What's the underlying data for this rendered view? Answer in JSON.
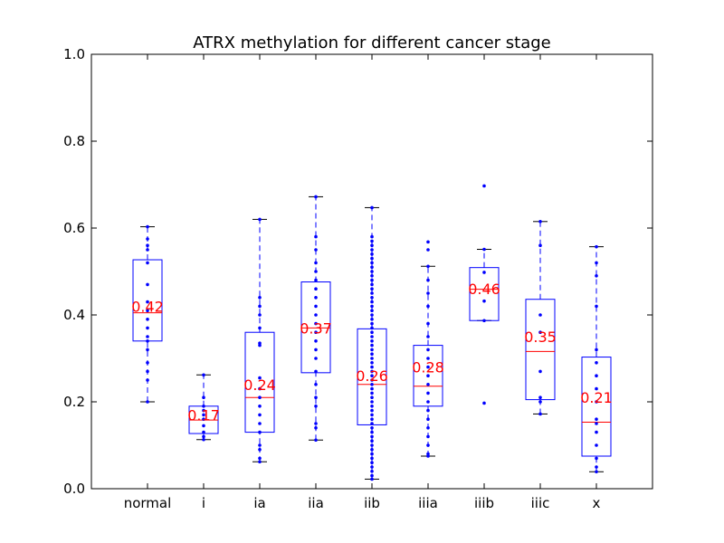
{
  "chart_data": {
    "type": "box",
    "title": "ATRX methylation for different cancer stage",
    "xlabel": "",
    "ylabel": "",
    "ylim": [
      0.0,
      1.0
    ],
    "yticks": [
      "0.0",
      "0.2",
      "0.4",
      "0.6",
      "0.8",
      "1.0"
    ],
    "categories": [
      "normal",
      "i",
      "ia",
      "iia",
      "iib",
      "iiia",
      "iiib",
      "iiic",
      "x"
    ],
    "colors": {
      "box": "#0000ff",
      "median": "#ff0000",
      "points": "#0000ff",
      "mean_label": "#ff0000"
    },
    "boxes": [
      {
        "category": "normal",
        "whisker_low": 0.2,
        "q1": 0.34,
        "median": 0.405,
        "q3": 0.527,
        "whisker_high": 0.603,
        "mean_label": "0.42",
        "points": [
          0.2,
          0.25,
          0.27,
          0.29,
          0.32,
          0.34,
          0.35,
          0.37,
          0.39,
          0.41,
          0.43,
          0.47,
          0.52,
          0.55,
          0.56,
          0.575,
          0.603
        ]
      },
      {
        "category": "i",
        "whisker_low": 0.113,
        "q1": 0.127,
        "median": 0.158,
        "q3": 0.19,
        "whisker_high": 0.262,
        "mean_label": "0.17",
        "points": [
          0.113,
          0.12,
          0.13,
          0.145,
          0.16,
          0.17,
          0.18,
          0.19,
          0.21,
          0.262
        ]
      },
      {
        "category": "ia",
        "whisker_low": 0.062,
        "q1": 0.13,
        "median": 0.21,
        "q3": 0.36,
        "whisker_high": 0.62,
        "mean_label": "0.24",
        "points": [
          0.062,
          0.07,
          0.09,
          0.1,
          0.13,
          0.15,
          0.17,
          0.19,
          0.21,
          0.23,
          0.255,
          0.33,
          0.335,
          0.37,
          0.4,
          0.42,
          0.44,
          0.62
        ]
      },
      {
        "category": "iia",
        "whisker_low": 0.112,
        "q1": 0.267,
        "median": 0.37,
        "q3": 0.476,
        "whisker_high": 0.672,
        "mean_label": "0.37",
        "points": [
          0.112,
          0.14,
          0.15,
          0.19,
          0.21,
          0.24,
          0.27,
          0.3,
          0.32,
          0.34,
          0.36,
          0.38,
          0.4,
          0.42,
          0.44,
          0.46,
          0.48,
          0.5,
          0.52,
          0.55,
          0.58,
          0.672
        ]
      },
      {
        "category": "iib",
        "whisker_low": 0.022,
        "q1": 0.147,
        "median": 0.24,
        "q3": 0.368,
        "whisker_high": 0.647,
        "mean_label": "0.26",
        "points": [
          0.022,
          0.03,
          0.04,
          0.05,
          0.06,
          0.07,
          0.08,
          0.09,
          0.1,
          0.11,
          0.12,
          0.13,
          0.14,
          0.15,
          0.16,
          0.17,
          0.18,
          0.19,
          0.2,
          0.21,
          0.22,
          0.23,
          0.24,
          0.25,
          0.26,
          0.27,
          0.28,
          0.29,
          0.3,
          0.31,
          0.32,
          0.33,
          0.34,
          0.35,
          0.36,
          0.37,
          0.38,
          0.39,
          0.4,
          0.41,
          0.42,
          0.43,
          0.44,
          0.45,
          0.46,
          0.47,
          0.48,
          0.49,
          0.5,
          0.51,
          0.52,
          0.53,
          0.54,
          0.55,
          0.56,
          0.57,
          0.58,
          0.647
        ]
      },
      {
        "category": "iiia",
        "whisker_low": 0.075,
        "q1": 0.19,
        "median": 0.236,
        "q3": 0.33,
        "whisker_high": 0.512,
        "mean_label": "0.28",
        "points": [
          0.075,
          0.08,
          0.1,
          0.12,
          0.14,
          0.16,
          0.18,
          0.2,
          0.22,
          0.24,
          0.26,
          0.28,
          0.3,
          0.32,
          0.35,
          0.38,
          0.42,
          0.45,
          0.48,
          0.512,
          0.55,
          0.568
        ]
      },
      {
        "category": "iiib",
        "whisker_low": 0.387,
        "q1": 0.387,
        "median": 0.459,
        "q3": 0.509,
        "whisker_high": 0.551,
        "mean_label": "0.46",
        "points": [
          0.197,
          0.387,
          0.432,
          0.498,
          0.551,
          0.697
        ]
      },
      {
        "category": "iiic",
        "whisker_low": 0.172,
        "q1": 0.205,
        "median": 0.316,
        "q3": 0.436,
        "whisker_high": 0.615,
        "mean_label": "0.35",
        "points": [
          0.172,
          0.2,
          0.21,
          0.27,
          0.36,
          0.4,
          0.56,
          0.615
        ]
      },
      {
        "category": "x",
        "whisker_low": 0.039,
        "q1": 0.075,
        "median": 0.153,
        "q3": 0.303,
        "whisker_high": 0.557,
        "mean_label": "0.21",
        "points": [
          0.039,
          0.05,
          0.07,
          0.1,
          0.13,
          0.15,
          0.16,
          0.2,
          0.23,
          0.26,
          0.29,
          0.32,
          0.42,
          0.49,
          0.52,
          0.557
        ]
      }
    ]
  }
}
